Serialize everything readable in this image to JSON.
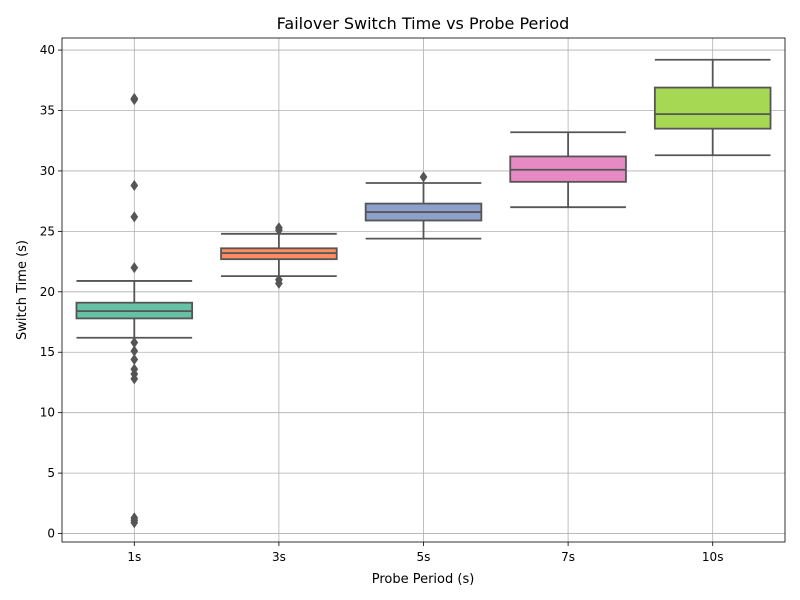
{
  "chart_data": {
    "type": "box",
    "title": "Failover Switch Time vs Probe Period",
    "xlabel": "Probe Period (s)",
    "ylabel": "Switch Time (s)",
    "categories": [
      "1s",
      "3s",
      "5s",
      "7s",
      "10s"
    ],
    "ylim": [
      -0.7,
      41.0
    ],
    "yticks": [
      0,
      5,
      10,
      15,
      20,
      25,
      30,
      35,
      40
    ],
    "grid": true,
    "boxes": [
      {
        "category": "1s",
        "color": "#66c2a5",
        "whisker_low": 16.2,
        "q1": 17.8,
        "median": 18.4,
        "q3": 19.1,
        "whisker_high": 20.9,
        "outliers": [
          36.0,
          35.9,
          28.8,
          26.2,
          22.0,
          15.8,
          15.1,
          14.4,
          13.6,
          13.2,
          12.8,
          1.3,
          1.1,
          0.9
        ]
      },
      {
        "category": "3s",
        "color": "#fc8d62",
        "whisker_low": 21.3,
        "q1": 22.7,
        "median": 23.2,
        "q3": 23.6,
        "whisker_high": 24.8,
        "outliers": [
          25.3,
          25.1,
          21.0,
          20.7
        ]
      },
      {
        "category": "5s",
        "color": "#8da0cb",
        "whisker_low": 24.4,
        "q1": 25.9,
        "median": 26.6,
        "q3": 27.3,
        "whisker_high": 29.0,
        "outliers": [
          29.5
        ]
      },
      {
        "category": "7s",
        "color": "#e78ac3",
        "whisker_low": 27.0,
        "q1": 29.1,
        "median": 30.1,
        "q3": 31.2,
        "whisker_high": 33.2,
        "outliers": []
      },
      {
        "category": "10s",
        "color": "#a6d854",
        "whisker_low": 31.3,
        "q1": 33.5,
        "median": 34.7,
        "q3": 36.9,
        "whisker_high": 39.2,
        "outliers": []
      }
    ]
  }
}
